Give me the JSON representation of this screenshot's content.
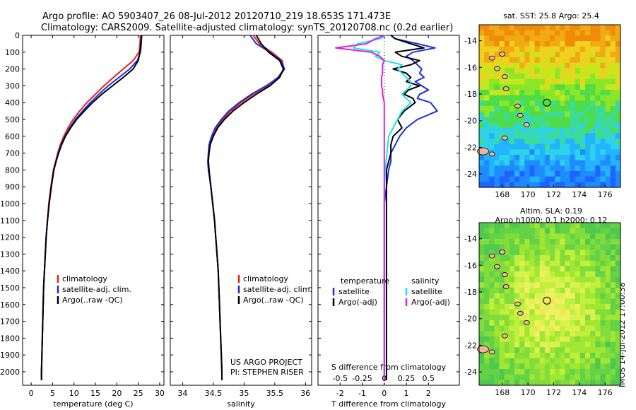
{
  "header": {
    "title_line1": "Argo profile: AO 5903407_26 08-Jul-2012 20120710_219 18.653S 171.473E",
    "title_line2": "Climatology: CARS2009. Satellite-adjusted climatology: synTS_20120708.nc (0.2d earlier)"
  },
  "map1": {
    "title": "sat. SST: 25.8 Argo: 25.4",
    "x_ticks": [
      "168",
      "170",
      "172",
      "174",
      "176"
    ],
    "y_ticks": [
      "-14",
      "-16",
      "-18",
      "-20",
      "-22",
      "-24"
    ]
  },
  "map2": {
    "title_line1": "Altim. SLA: 0.19",
    "title_line2": "Argo h1000: 0.1 h2000: 0.12",
    "x_ticks": [
      "168",
      "170",
      "172",
      "174",
      "176"
    ],
    "y_ticks": [
      "-14",
      "-16",
      "-18",
      "-20",
      "-22",
      "-24"
    ]
  },
  "credit": "IMOS 14-Jul-2012 17:00:38",
  "project_note": {
    "line1": "US ARGO PROJECT",
    "line2": "PI: STEPHEN RISER"
  },
  "colors": {
    "climatology": "#e8201a",
    "satellite": "#1a2fe0",
    "argo": "#000000",
    "sat_salinity": "#1ee0e0",
    "argo_salinity": "#e020e0"
  },
  "chart_data": [
    {
      "type": "line",
      "xlabel": "temperature (deg C)",
      "ylabel": "",
      "xlim": [
        -2,
        31
      ],
      "ylim": [
        2080,
        0
      ],
      "x_ticks": [
        "0",
        "5",
        "10",
        "15",
        "20",
        "25",
        "30"
      ],
      "y_ticks": [
        "0",
        "100",
        "200",
        "300",
        "400",
        "500",
        "600",
        "700",
        "800",
        "900",
        "1000",
        "1100",
        "1200",
        "1300",
        "1400",
        "1500",
        "1600",
        "1700",
        "1800",
        "1900",
        "2000"
      ],
      "legend": [
        "climatology",
        "satellite-adj. clim.",
        "Argo(..raw -QC)"
      ],
      "depth": [
        0,
        50,
        100,
        150,
        200,
        250,
        300,
        350,
        400,
        450,
        500,
        550,
        600,
        650,
        700,
        750,
        800,
        900,
        1000,
        1100,
        1200,
        1300,
        1400,
        1500,
        1600,
        1700,
        1800,
        1900,
        2000,
        2050
      ],
      "series": [
        {
          "name": "climatology",
          "values": [
            25.5,
            25.4,
            25.2,
            23.8,
            21.5,
            19.2,
            17.0,
            15.0,
            13.0,
            11.3,
            9.8,
            8.6,
            7.6,
            6.8,
            6.2,
            5.7,
            5.2,
            4.6,
            4.1,
            3.8,
            3.5,
            3.3,
            3.1,
            2.9,
            2.8,
            2.7,
            2.6,
            2.5,
            2.4,
            2.4
          ]
        },
        {
          "name": "satellite-adj. clim.",
          "values": [
            25.8,
            25.7,
            25.5,
            24.8,
            23.0,
            20.5,
            18.0,
            15.8,
            13.8,
            12.0,
            10.3,
            9.0,
            7.9,
            7.0,
            6.3,
            5.8,
            5.3,
            4.7,
            4.2,
            3.8,
            3.5,
            3.3,
            3.1,
            2.9,
            2.8,
            2.7,
            2.6,
            2.5,
            2.4,
            2.4
          ]
        },
        {
          "name": "Argo(..raw -QC)",
          "values": [
            25.8,
            25.6,
            25.4,
            25.0,
            23.8,
            21.5,
            19.0,
            16.5,
            14.3,
            12.4,
            10.6,
            9.2,
            8.0,
            7.1,
            6.4,
            5.8,
            5.3,
            4.7,
            4.2,
            3.8,
            3.5,
            3.3,
            3.1,
            2.9,
            2.8,
            2.7,
            2.6,
            2.5,
            2.4,
            2.4
          ]
        }
      ]
    },
    {
      "type": "line",
      "xlabel": "salinity",
      "ylabel": "",
      "xlim": [
        33.8,
        36.1
      ],
      "ylim": [
        2080,
        0
      ],
      "x_ticks": [
        "34",
        "34.5",
        "35",
        "35.5",
        "36"
      ],
      "legend": [
        "climatology",
        "satellite-adj. clim.",
        "Argo(..raw -QC)"
      ],
      "depth": [
        0,
        50,
        100,
        150,
        200,
        250,
        300,
        350,
        400,
        450,
        500,
        550,
        600,
        650,
        700,
        750,
        800,
        900,
        1000,
        1100,
        1200,
        1300,
        1400,
        1500,
        1600,
        1700,
        1800,
        1900,
        2000,
        2050
      ],
      "series": [
        {
          "name": "climatology",
          "values": [
            35.15,
            35.25,
            35.45,
            35.62,
            35.65,
            35.55,
            35.38,
            35.15,
            34.95,
            34.78,
            34.65,
            34.55,
            34.48,
            34.44,
            34.42,
            34.42,
            34.43,
            34.46,
            34.49,
            34.52,
            34.54,
            34.56,
            34.58,
            34.59,
            34.6,
            34.61,
            34.62,
            34.63,
            34.64,
            34.64
          ]
        },
        {
          "name": "satellite-adj. clim.",
          "values": [
            35.1,
            35.2,
            35.42,
            35.6,
            35.66,
            35.56,
            35.36,
            35.12,
            34.92,
            34.75,
            34.63,
            34.53,
            34.47,
            34.43,
            34.42,
            34.41,
            34.42,
            34.46,
            34.49,
            34.52,
            34.54,
            34.56,
            34.58,
            34.59,
            34.6,
            34.61,
            34.62,
            34.63,
            34.64,
            34.64
          ]
        },
        {
          "name": "Argo(..raw -QC)",
          "values": [
            35.2,
            35.28,
            35.4,
            35.58,
            35.64,
            35.58,
            35.42,
            35.2,
            35.0,
            34.82,
            34.68,
            34.57,
            34.5,
            34.45,
            34.43,
            34.42,
            34.43,
            34.46,
            34.49,
            34.52,
            34.54,
            34.56,
            34.58,
            34.59,
            34.6,
            34.61,
            34.62,
            34.63,
            34.64,
            34.64
          ]
        }
      ]
    },
    {
      "type": "line",
      "xlabel": "T difference from climatology",
      "xlabel_top": "S difference from climatology",
      "xlim": [
        -3,
        3.4
      ],
      "ylim": [
        2080,
        0
      ],
      "x_ticks": [
        "-2",
        "-1",
        "0",
        "1",
        "2"
      ],
      "x_ticks_top": [
        "-0.5",
        "-0.25",
        "0",
        "0.25",
        "0.5"
      ],
      "legend_t_title": "temperature",
      "legend_s_title": "salinity",
      "legend": [
        "satellite",
        "Argo(-adj)",
        "satellite",
        "Argo(-adj)"
      ],
      "depth": [
        0,
        20,
        50,
        75,
        100,
        125,
        150,
        175,
        200,
        225,
        250,
        275,
        300,
        325,
        350,
        375,
        400,
        450,
        500,
        550,
        600,
        650,
        700,
        750,
        800,
        900,
        1000,
        1100,
        1200,
        1400,
        1600,
        1800,
        2000,
        2050
      ],
      "series": [
        {
          "name": "temperature satellite",
          "values": [
            0.3,
            0.5,
            1.5,
            2.3,
            1.3,
            1.0,
            1.3,
            1.5,
            1.7,
            1.6,
            1.8,
            1.4,
            1.7,
            2.0,
            1.6,
            1.5,
            2.1,
            2.4,
            1.5,
            1.0,
            0.7,
            0.5,
            0.3,
            0.3,
            0.2,
            0.1,
            0.0,
            0.0,
            0.0,
            0.0,
            0.0,
            0.0,
            0.0,
            0.0
          ]
        },
        {
          "name": "temperature Argo(-adj)",
          "values": [
            0.3,
            0.5,
            1.2,
            1.8,
            0.5,
            0.8,
            1.6,
            1.2,
            0.4,
            1.0,
            1.2,
            1.0,
            1.6,
            1.1,
            0.9,
            1.3,
            1.4,
            0.9,
            0.6,
            0.8,
            0.4,
            0.3,
            0.3,
            0.2,
            0.1,
            0.1,
            0.1,
            0.1,
            0.1,
            0.1,
            0.1,
            0.1,
            0.1,
            0.1
          ]
        },
        {
          "name": "salinity satellite",
          "values": [
            0.02,
            -0.05,
            -0.3,
            -0.35,
            -0.05,
            -0.1,
            0.0,
            0.2,
            0.15,
            0.2,
            0.25,
            0.3,
            0.3,
            0.25,
            0.2,
            0.25,
            0.3,
            0.2,
            0.15,
            0.1,
            0.05,
            0.04,
            0.03,
            0.02,
            0.01,
            0.0,
            0.0,
            0.0,
            0.0,
            0.0,
            0.0,
            0.0,
            0.0,
            0.0
          ]
        },
        {
          "name": "salinity Argo(-adj)",
          "values": [
            0.0,
            -0.1,
            -0.2,
            -0.55,
            -0.15,
            -0.05,
            0.0,
            -0.02,
            -0.02,
            -0.02,
            -0.03,
            -0.03,
            -0.03,
            -0.02,
            -0.02,
            -0.01,
            0.0,
            0.0,
            0.0,
            0.0,
            0.0,
            0.0,
            0.0,
            0.0,
            0.0,
            0.0,
            0.0,
            0.0,
            0.0,
            0.0,
            0.0,
            0.0,
            0.0,
            0.0
          ]
        }
      ]
    }
  ]
}
